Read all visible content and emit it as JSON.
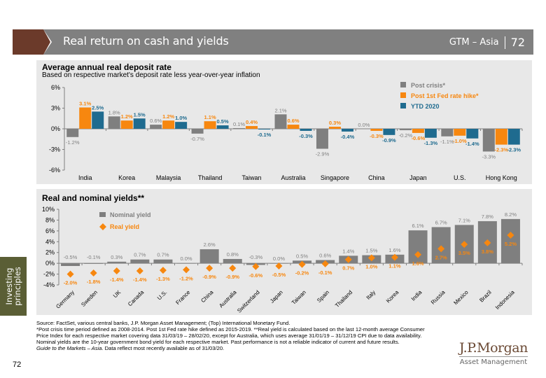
{
  "header": {
    "title": "Real return on cash and yields",
    "section": "GTM – Asia",
    "page": "72"
  },
  "side_tab": "Investing principles",
  "page_number": "72",
  "logo": {
    "name": "J.P.Morgan",
    "sub": "Asset Management"
  },
  "colors": {
    "gray": "#7f7f7f",
    "orange": "#f7870f",
    "blue": "#1f6b8f",
    "header_gray": "#808080",
    "accent_brown": "#6b3a2a",
    "side_olive": "#5a5e35"
  },
  "footnotes": {
    "line1": "Source: FactSet, various central banks, J.P. Morgan Asset Management; (Top) International Monetary Fund.",
    "line2": "*Post crisis time period defined as 2008-2014. Post 1st Fed rate hike defined as 2015-2019. **Real yield is calculated based on the last 12-month average Consumer",
    "line3": "Price Index for each respective market covering data 31/03/19 – 28/02/20, except for Australia, which uses average 31/01/19 – 31/12/19 CPI due to data availability.",
    "line4": "Nominal yields are the 10-year government bond yield for each respective market. Past performance is not a reliable indicator of current and future results.",
    "line5_italic": "Guide to the Markets – Asia",
    "line5_rest": ". Data reflect most recently available as of 31/03/20."
  },
  "chart_data": [
    {
      "type": "bar",
      "title": "Average annual real deposit rate",
      "subtitle": "Based on respective market's deposit rate less year-over-year inflation",
      "categories": [
        "India",
        "Korea",
        "Malaysia",
        "Thailand",
        "Taiwan",
        "Australia",
        "Singapore",
        "China",
        "Japan",
        "U.S.",
        "Hong Kong"
      ],
      "series": [
        {
          "name": "Post crisis*",
          "color": "#7f7f7f",
          "values": [
            -1.2,
            1.8,
            0.6,
            -0.7,
            0.1,
            2.1,
            -2.9,
            0.0,
            -0.2,
            -1.1,
            -3.3
          ]
        },
        {
          "name": "Post 1st Fed rate hike*",
          "color": "#f7870f",
          "values": [
            3.1,
            1.2,
            1.2,
            1.1,
            0.4,
            0.6,
            0.3,
            -0.3,
            -0.6,
            -1.0,
            -2.3
          ]
        },
        {
          "name": "YTD 2020",
          "color": "#1f6b8f",
          "values": [
            2.5,
            1.5,
            1.0,
            0.5,
            -0.1,
            -0.3,
            -0.4,
            -0.9,
            -1.3,
            -1.4,
            -2.3
          ]
        }
      ],
      "yticks": [
        "6%",
        "3%",
        "0%",
        "-3%",
        "-6%"
      ],
      "ylim": [
        -6,
        6
      ],
      "ylabel": "",
      "xlabel": "",
      "legend": "top-right",
      "grid": false
    },
    {
      "type": "bar",
      "title": "Real and nominal yields**",
      "categories": [
        "Germany",
        "Sweden",
        "UK",
        "Canada",
        "U.S.",
        "France",
        "China",
        "Australia",
        "Switzerland",
        "Japan",
        "Taiwan",
        "Spain",
        "Thailand",
        "Italy",
        "Korea",
        "India",
        "Russia",
        "Mexico",
        "Brazil",
        "Indonesia"
      ],
      "series": [
        {
          "name": "Nominal yield",
          "kind": "bar",
          "color": "#7f7f7f",
          "values": [
            -0.5,
            -0.1,
            0.3,
            0.7,
            0.7,
            0.0,
            2.6,
            0.8,
            -0.3,
            0.0,
            0.5,
            0.6,
            1.4,
            1.5,
            1.6,
            6.1,
            6.7,
            7.1,
            7.8,
            8.2
          ]
        },
        {
          "name": "Real yield",
          "kind": "scatter-diamond",
          "color": "#f7870f",
          "values": [
            -2.0,
            -1.8,
            -1.4,
            -1.4,
            -1.3,
            -1.2,
            -0.9,
            -0.9,
            -0.6,
            -0.5,
            -0.2,
            -0.1,
            0.7,
            1.0,
            1.1,
            1.6,
            2.7,
            3.5,
            3.8,
            5.2
          ]
        }
      ],
      "yticks": [
        "10%",
        "8%",
        "6%",
        "4%",
        "2%",
        "0%",
        "-2%",
        "-4%"
      ],
      "ylim": [
        -4,
        10
      ],
      "ylabel": "",
      "xlabel": "",
      "legend": "top-left",
      "grid": false
    }
  ]
}
